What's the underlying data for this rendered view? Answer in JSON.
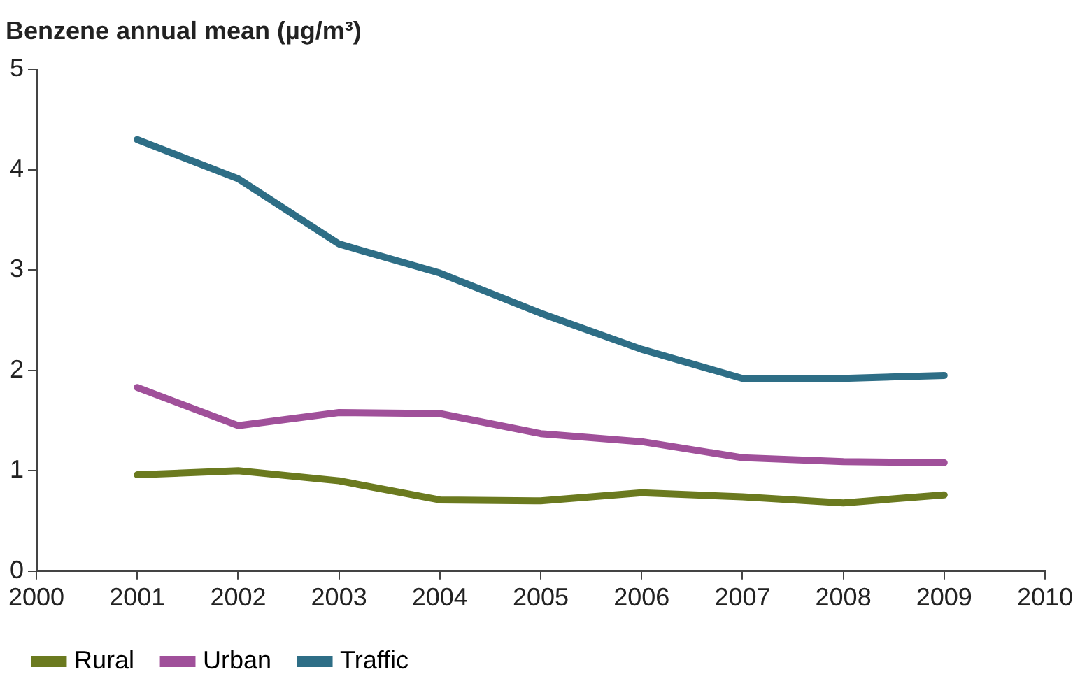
{
  "chart_data": {
    "type": "line",
    "ylabel": "Benzene annual mean (µg/m³)",
    "x": [
      2001,
      2002,
      2003,
      2004,
      2005,
      2006,
      2007,
      2008,
      2009
    ],
    "series": [
      {
        "name": "Rural",
        "color": "#6b7a1f",
        "values": [
          0.96,
          1.0,
          0.9,
          0.71,
          0.7,
          0.78,
          0.74,
          0.68,
          0.76
        ]
      },
      {
        "name": "Urban",
        "color": "#a0509a",
        "values": [
          1.83,
          1.45,
          1.58,
          1.57,
          1.37,
          1.29,
          1.13,
          1.09,
          1.08
        ]
      },
      {
        "name": "Traffic",
        "color": "#2e6e86",
        "values": [
          4.3,
          3.91,
          3.26,
          2.97,
          2.57,
          2.21,
          1.92,
          1.92,
          1.95
        ]
      }
    ],
    "xlim": [
      2000,
      2010
    ],
    "xticks": [
      2000,
      2001,
      2002,
      2003,
      2004,
      2005,
      2006,
      2007,
      2008,
      2009,
      2010
    ],
    "ylim": [
      0,
      5
    ],
    "yticks": [
      0,
      1,
      2,
      3,
      4,
      5
    ],
    "grid": false,
    "legend": "bottom left",
    "marker": "none",
    "line_style": "solid"
  }
}
